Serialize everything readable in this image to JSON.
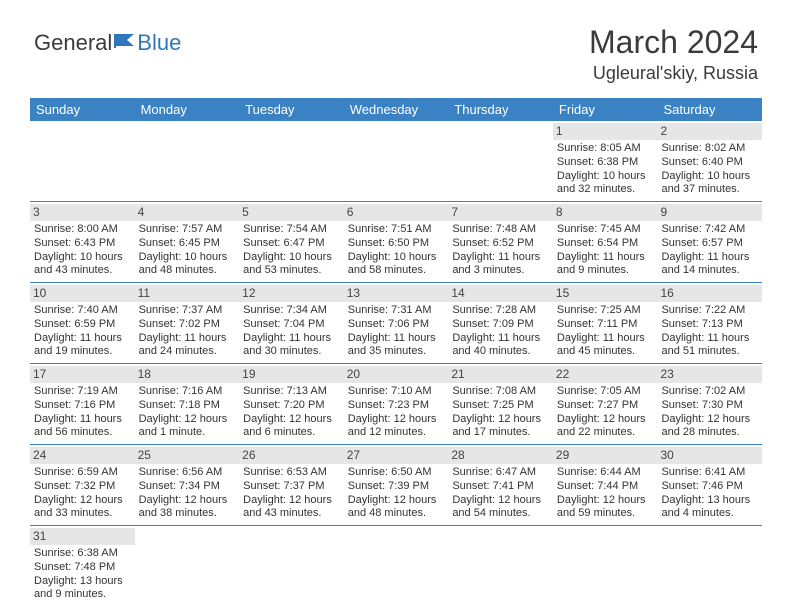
{
  "brand": {
    "part1": "General",
    "part2": "Blue"
  },
  "title": "March 2024",
  "location": "Ugleural'skiy, Russia",
  "colors": {
    "header_bg": "#3b82c4",
    "header_text": "#ffffff",
    "daynum_bg": "#e6e6e6",
    "row_border": "#3b82c4",
    "brand_blue": "#2f77b8",
    "text": "#333333",
    "background": "#ffffff"
  },
  "weekdays": [
    "Sunday",
    "Monday",
    "Tuesday",
    "Wednesday",
    "Thursday",
    "Friday",
    "Saturday"
  ],
  "weeks": [
    [
      null,
      null,
      null,
      null,
      null,
      {
        "n": "1",
        "sr": "Sunrise: 8:05 AM",
        "ss": "Sunset: 6:38 PM",
        "d1": "Daylight: 10 hours",
        "d2": "and 32 minutes."
      },
      {
        "n": "2",
        "sr": "Sunrise: 8:02 AM",
        "ss": "Sunset: 6:40 PM",
        "d1": "Daylight: 10 hours",
        "d2": "and 37 minutes."
      }
    ],
    [
      {
        "n": "3",
        "sr": "Sunrise: 8:00 AM",
        "ss": "Sunset: 6:43 PM",
        "d1": "Daylight: 10 hours",
        "d2": "and 43 minutes."
      },
      {
        "n": "4",
        "sr": "Sunrise: 7:57 AM",
        "ss": "Sunset: 6:45 PM",
        "d1": "Daylight: 10 hours",
        "d2": "and 48 minutes."
      },
      {
        "n": "5",
        "sr": "Sunrise: 7:54 AM",
        "ss": "Sunset: 6:47 PM",
        "d1": "Daylight: 10 hours",
        "d2": "and 53 minutes."
      },
      {
        "n": "6",
        "sr": "Sunrise: 7:51 AM",
        "ss": "Sunset: 6:50 PM",
        "d1": "Daylight: 10 hours",
        "d2": "and 58 minutes."
      },
      {
        "n": "7",
        "sr": "Sunrise: 7:48 AM",
        "ss": "Sunset: 6:52 PM",
        "d1": "Daylight: 11 hours",
        "d2": "and 3 minutes."
      },
      {
        "n": "8",
        "sr": "Sunrise: 7:45 AM",
        "ss": "Sunset: 6:54 PM",
        "d1": "Daylight: 11 hours",
        "d2": "and 9 minutes."
      },
      {
        "n": "9",
        "sr": "Sunrise: 7:42 AM",
        "ss": "Sunset: 6:57 PM",
        "d1": "Daylight: 11 hours",
        "d2": "and 14 minutes."
      }
    ],
    [
      {
        "n": "10",
        "sr": "Sunrise: 7:40 AM",
        "ss": "Sunset: 6:59 PM",
        "d1": "Daylight: 11 hours",
        "d2": "and 19 minutes."
      },
      {
        "n": "11",
        "sr": "Sunrise: 7:37 AM",
        "ss": "Sunset: 7:02 PM",
        "d1": "Daylight: 11 hours",
        "d2": "and 24 minutes."
      },
      {
        "n": "12",
        "sr": "Sunrise: 7:34 AM",
        "ss": "Sunset: 7:04 PM",
        "d1": "Daylight: 11 hours",
        "d2": "and 30 minutes."
      },
      {
        "n": "13",
        "sr": "Sunrise: 7:31 AM",
        "ss": "Sunset: 7:06 PM",
        "d1": "Daylight: 11 hours",
        "d2": "and 35 minutes."
      },
      {
        "n": "14",
        "sr": "Sunrise: 7:28 AM",
        "ss": "Sunset: 7:09 PM",
        "d1": "Daylight: 11 hours",
        "d2": "and 40 minutes."
      },
      {
        "n": "15",
        "sr": "Sunrise: 7:25 AM",
        "ss": "Sunset: 7:11 PM",
        "d1": "Daylight: 11 hours",
        "d2": "and 45 minutes."
      },
      {
        "n": "16",
        "sr": "Sunrise: 7:22 AM",
        "ss": "Sunset: 7:13 PM",
        "d1": "Daylight: 11 hours",
        "d2": "and 51 minutes."
      }
    ],
    [
      {
        "n": "17",
        "sr": "Sunrise: 7:19 AM",
        "ss": "Sunset: 7:16 PM",
        "d1": "Daylight: 11 hours",
        "d2": "and 56 minutes."
      },
      {
        "n": "18",
        "sr": "Sunrise: 7:16 AM",
        "ss": "Sunset: 7:18 PM",
        "d1": "Daylight: 12 hours",
        "d2": "and 1 minute."
      },
      {
        "n": "19",
        "sr": "Sunrise: 7:13 AM",
        "ss": "Sunset: 7:20 PM",
        "d1": "Daylight: 12 hours",
        "d2": "and 6 minutes."
      },
      {
        "n": "20",
        "sr": "Sunrise: 7:10 AM",
        "ss": "Sunset: 7:23 PM",
        "d1": "Daylight: 12 hours",
        "d2": "and 12 minutes."
      },
      {
        "n": "21",
        "sr": "Sunrise: 7:08 AM",
        "ss": "Sunset: 7:25 PM",
        "d1": "Daylight: 12 hours",
        "d2": "and 17 minutes."
      },
      {
        "n": "22",
        "sr": "Sunrise: 7:05 AM",
        "ss": "Sunset: 7:27 PM",
        "d1": "Daylight: 12 hours",
        "d2": "and 22 minutes."
      },
      {
        "n": "23",
        "sr": "Sunrise: 7:02 AM",
        "ss": "Sunset: 7:30 PM",
        "d1": "Daylight: 12 hours",
        "d2": "and 28 minutes."
      }
    ],
    [
      {
        "n": "24",
        "sr": "Sunrise: 6:59 AM",
        "ss": "Sunset: 7:32 PM",
        "d1": "Daylight: 12 hours",
        "d2": "and 33 minutes."
      },
      {
        "n": "25",
        "sr": "Sunrise: 6:56 AM",
        "ss": "Sunset: 7:34 PM",
        "d1": "Daylight: 12 hours",
        "d2": "and 38 minutes."
      },
      {
        "n": "26",
        "sr": "Sunrise: 6:53 AM",
        "ss": "Sunset: 7:37 PM",
        "d1": "Daylight: 12 hours",
        "d2": "and 43 minutes."
      },
      {
        "n": "27",
        "sr": "Sunrise: 6:50 AM",
        "ss": "Sunset: 7:39 PM",
        "d1": "Daylight: 12 hours",
        "d2": "and 48 minutes."
      },
      {
        "n": "28",
        "sr": "Sunrise: 6:47 AM",
        "ss": "Sunset: 7:41 PM",
        "d1": "Daylight: 12 hours",
        "d2": "and 54 minutes."
      },
      {
        "n": "29",
        "sr": "Sunrise: 6:44 AM",
        "ss": "Sunset: 7:44 PM",
        "d1": "Daylight: 12 hours",
        "d2": "and 59 minutes."
      },
      {
        "n": "30",
        "sr": "Sunrise: 6:41 AM",
        "ss": "Sunset: 7:46 PM",
        "d1": "Daylight: 13 hours",
        "d2": "and 4 minutes."
      }
    ],
    [
      {
        "n": "31",
        "sr": "Sunrise: 6:38 AM",
        "ss": "Sunset: 7:48 PM",
        "d1": "Daylight: 13 hours",
        "d2": "and 9 minutes."
      },
      null,
      null,
      null,
      null,
      null,
      null
    ]
  ]
}
